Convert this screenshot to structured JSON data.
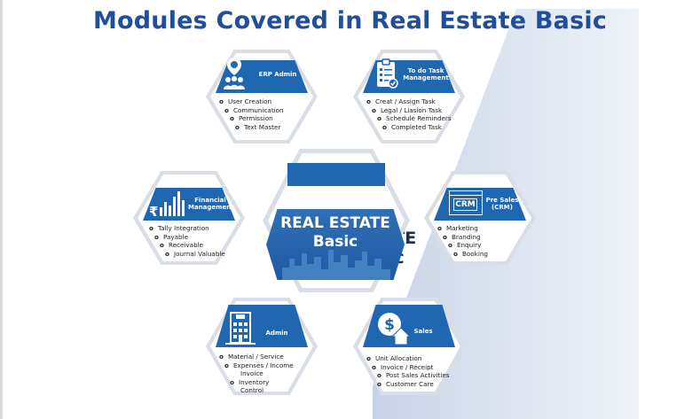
{
  "title": "Modules Covered in Real Estate Basic",
  "ghost_text": {
    "line1": "ATE",
    "line2": "ic"
  },
  "center": {
    "line1": "REAL ESTATE",
    "line2": "Basic"
  },
  "modules": {
    "erp_admin": {
      "label": "ERP Admin",
      "icon": "team-icon",
      "items": [
        "User Creation",
        "Communication",
        "Permission",
        "Text Master"
      ]
    },
    "todo": {
      "label_line1": "To do Task",
      "label_line2": "Management",
      "icon": "clipboard-icon",
      "items": [
        "Creat / Assign Task",
        "Legal / Liasion Task",
        "Schedule Reminders",
        "Completed Task"
      ]
    },
    "financial": {
      "label_line1": "Financial",
      "label_line2": "Management",
      "icon": "rupee-chart-icon",
      "items": [
        "Tally Integration",
        "Payable",
        "Receivable",
        "Journal Valuable"
      ]
    },
    "crm": {
      "label_line1": "Pre Sales",
      "label_line2": "(CRM)",
      "badge": "CRM",
      "icon": "crm-window-icon",
      "items": [
        "Marketing",
        "Branding",
        "Enquiry",
        "Booking"
      ]
    },
    "admin": {
      "label": "Admin",
      "icon": "building-icon",
      "items": [
        "Material / Service",
        "Expenses / Income",
        "Invoice",
        "Inventory",
        "Control"
      ]
    },
    "sales": {
      "label": "Sales",
      "icon": "dollar-house-icon",
      "items": [
        "Unit Allocation",
        "Invoice / Receipt",
        "Post Sales Activities",
        "Customer Care"
      ]
    }
  },
  "colors": {
    "title": "#1f4e9a",
    "band": "#1f67b1",
    "hex_border": "#d8dde6"
  }
}
